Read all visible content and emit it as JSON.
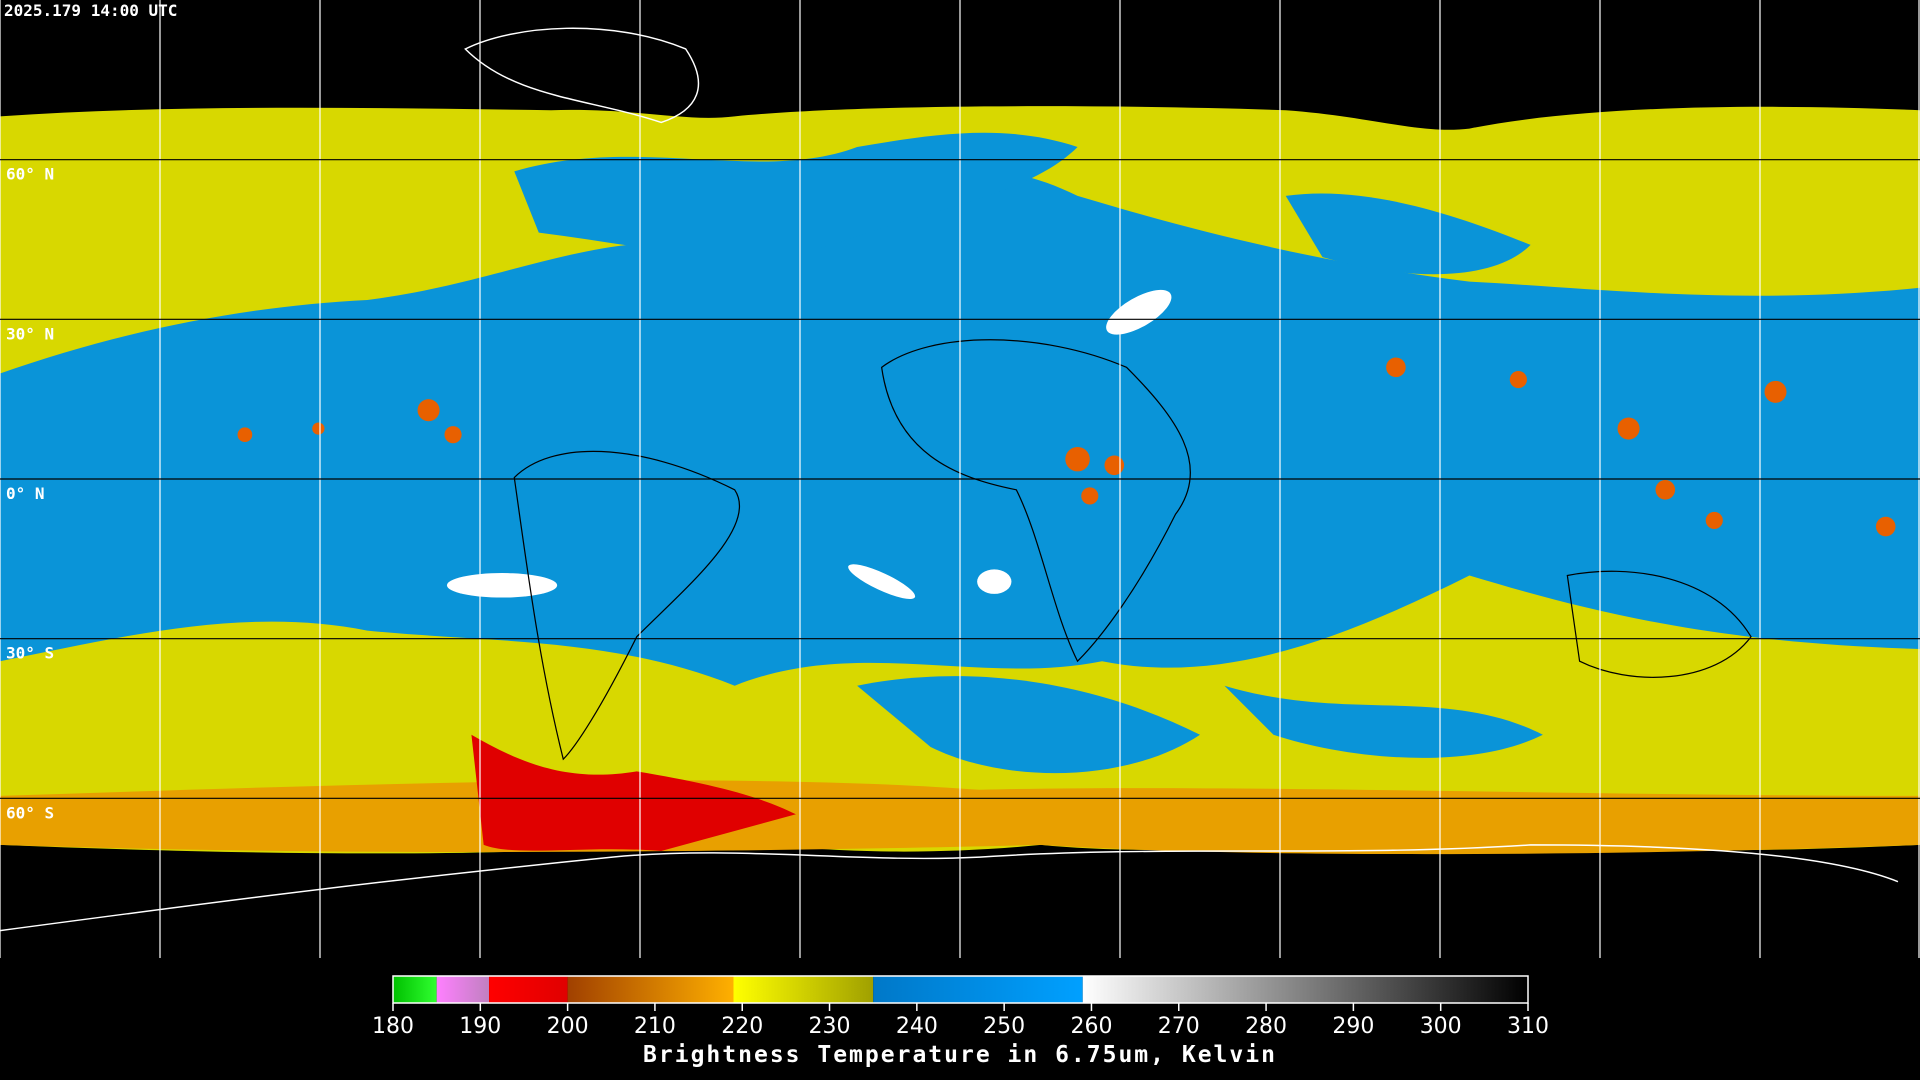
{
  "header": {
    "timestamp": "2025.179 14:00 UTC"
  },
  "map": {
    "latitude_labels": [
      "60° N",
      "30° N",
      "0° N",
      "30° S",
      "60° S"
    ]
  },
  "colorbar": {
    "title": "Brightness Temperature in 6.75um, Kelvin",
    "lim": [
      180,
      310
    ],
    "ticks": [
      180,
      190,
      200,
      210,
      220,
      230,
      240,
      250,
      260,
      270,
      280,
      290,
      300,
      310
    ],
    "segments": [
      {
        "from": 180,
        "to": 185,
        "colors": [
          "#00c000",
          "#30ff30"
        ]
      },
      {
        "from": 185,
        "to": 191,
        "colors": [
          "#ff80ff",
          "#c080c0"
        ]
      },
      {
        "from": 191,
        "to": 200,
        "colors": [
          "#ff0000",
          "#e00000"
        ]
      },
      {
        "from": 200,
        "to": 219,
        "colors": [
          "#a04000",
          "#ffb000"
        ]
      },
      {
        "from": 219,
        "to": 235,
        "colors": [
          "#ffff00",
          "#a0a000"
        ]
      },
      {
        "from": 235,
        "to": 259,
        "colors": [
          "#0078c8",
          "#00a0ff"
        ]
      },
      {
        "from": 259,
        "to": 310,
        "colors": [
          "#ffffff",
          "#000000"
        ]
      }
    ]
  }
}
